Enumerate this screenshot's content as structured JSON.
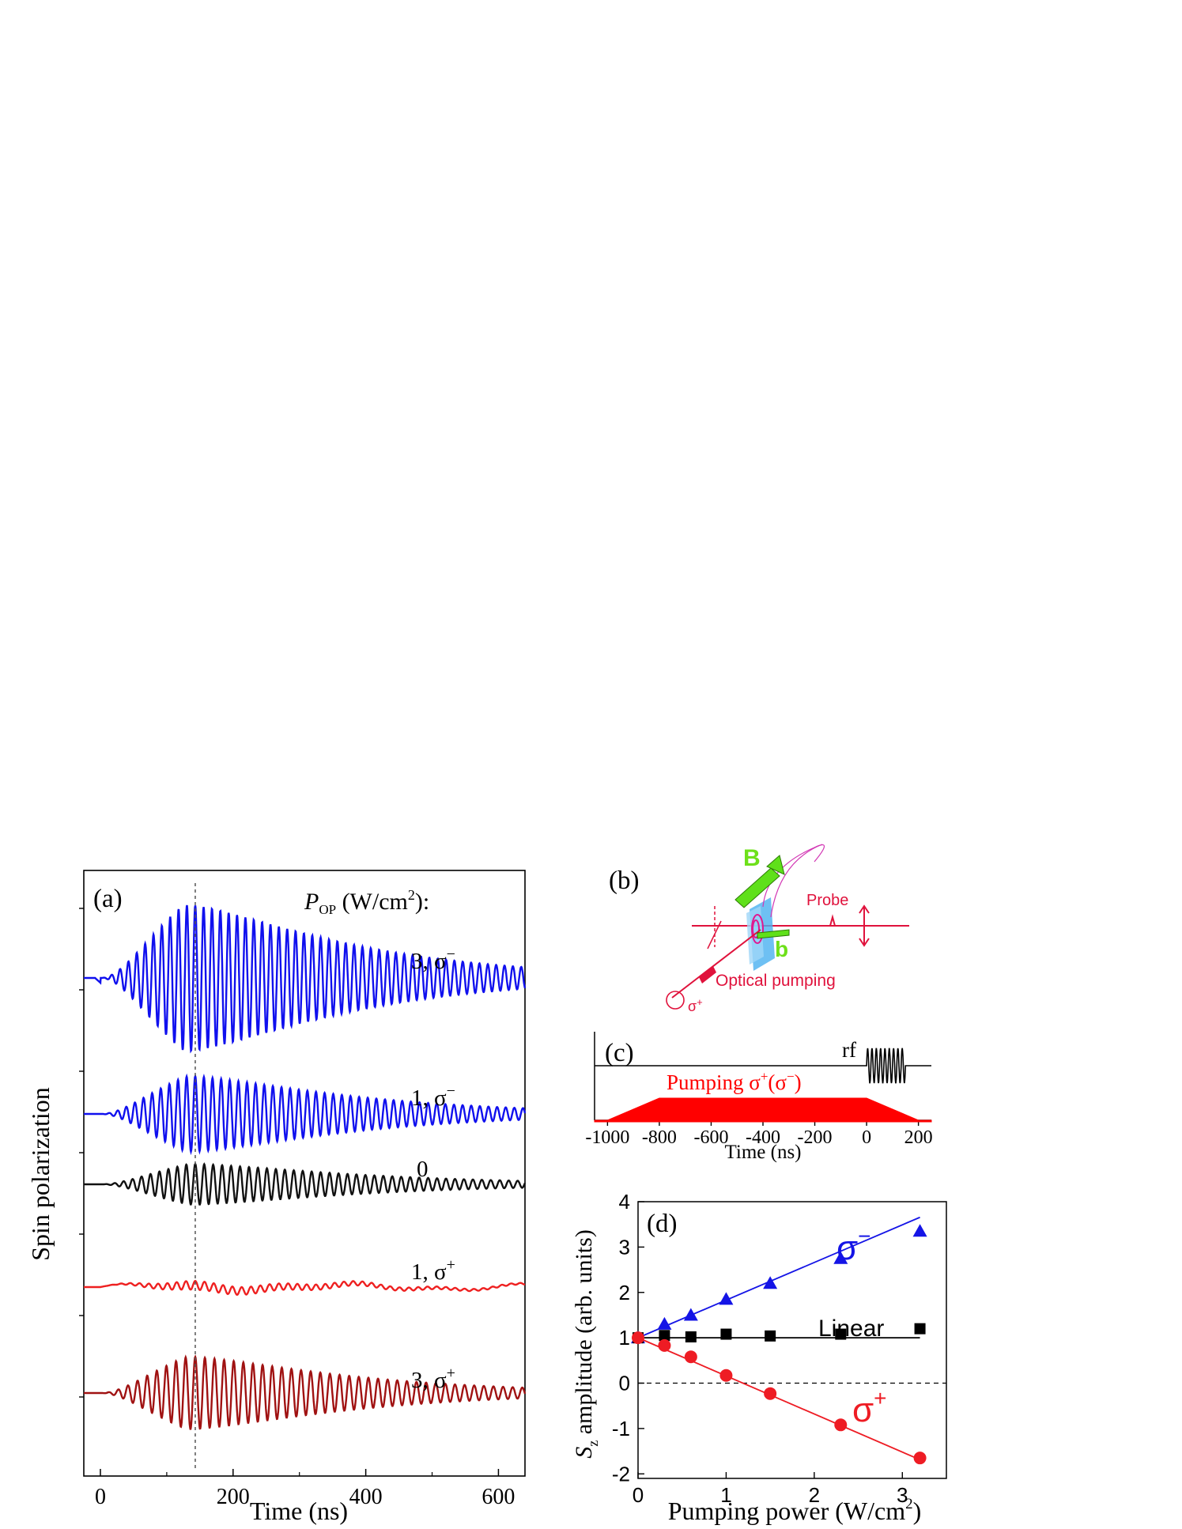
{
  "chart_data": [
    {
      "panel": "(a)",
      "type": "line",
      "xlabel": "Time (ns)",
      "ylabel": "Spin polarization",
      "xlim": [
        -25,
        640
      ],
      "xticks": [
        0,
        200,
        400,
        600
      ],
      "xtick_labels": [
        "0",
        "200",
        "400",
        "600"
      ],
      "legend_title_symbol": "P",
      "legend_title_sub": "OP",
      "legend_title_rest": " (W/cm",
      "legend_title_sup": "2",
      "legend_title_end": "):",
      "marker_time_ns": 143,
      "series": [
        {
          "name": "3, σ−",
          "label_main": "3, σ",
          "label_sup": "−",
          "color": "#1010ee",
          "amplitude": 1.0,
          "envelope_peak_ns": 135,
          "decay_ns": 300,
          "period_ns": 12.6,
          "rising_ns": 10
        },
        {
          "name": "1, σ−",
          "label_main": "1, σ",
          "label_sup": "−",
          "color": "#1010ee",
          "amplitude": 0.52,
          "envelope_peak_ns": 140,
          "decay_ns": 290,
          "period_ns": 13.0,
          "rising_ns": 10
        },
        {
          "name": "0",
          "label_main": "0",
          "label_sup": "",
          "color": "#111111",
          "amplitude": 0.28,
          "envelope_peak_ns": 145,
          "decay_ns": 300,
          "period_ns": 13.5,
          "rising_ns": 10
        },
        {
          "name": "1, σ+",
          "label_main": "1, σ",
          "label_sup": "+",
          "color": "#ee2020",
          "amplitude": 0.06,
          "envelope_peak_ns": 145,
          "decay_ns": 320,
          "period_ns": 14.0,
          "rising_ns": 10
        },
        {
          "name": "3, σ+",
          "label_main": "3, σ",
          "label_sup": "+",
          "color": "#a01212",
          "amplitude": 0.5,
          "envelope_peak_ns": 140,
          "decay_ns": 280,
          "period_ns": 14.5,
          "rising_ns": 10
        }
      ]
    },
    {
      "panel": "(b)",
      "type": "diagram",
      "labels": {
        "B": "B",
        "b": "b",
        "probe": "Probe",
        "pumping": "Optical pumping",
        "sigma": "σ",
        "sigma_sup": "+"
      }
    },
    {
      "panel": "(c)",
      "type": "area",
      "xlabel": "Time (ns)",
      "xlim": [
        -1050,
        250
      ],
      "xticks": [
        -1000,
        -800,
        -600,
        -400,
        -200,
        0,
        200
      ],
      "xtick_labels": [
        "-1000",
        "-800",
        "-600",
        "-400",
        "-200",
        "0",
        "200"
      ],
      "rf_label": "rf",
      "pumping_label_a": "Pumping σ",
      "pumping_label_sup1": "+",
      "pumping_label_b": "(σ",
      "pumping_label_sup2": "−",
      "pumping_label_c": ")",
      "pumping_profile": {
        "start": -1000,
        "ramp_end": -800,
        "ramp_down_start": 0,
        "end": 200
      },
      "rf_window": {
        "start": 0,
        "end": 150,
        "cycles": 9
      }
    },
    {
      "panel": "(d)",
      "type": "scatter",
      "xlabel_main": "Pumping power (W/cm",
      "xlabel_sup": "2",
      "xlabel_end": ")",
      "ylabel_symbol": "S",
      "ylabel_sub": "z",
      "ylabel_rest": " amplitude (arb. units)",
      "xlim": [
        0,
        3.5
      ],
      "ylim": [
        -2.1,
        4.0
      ],
      "xticks": [
        0,
        1,
        2,
        3
      ],
      "yticks": [
        -2,
        -1,
        0,
        1,
        2,
        3,
        4
      ],
      "reference_line_y": 0,
      "series": [
        {
          "name": "σ−",
          "label_main": "σ",
          "label_sup": "−",
          "marker": "triangle",
          "color": "#1414e6",
          "x": [
            0,
            0.3,
            0.6,
            1.0,
            1.5,
            2.3,
            3.2
          ],
          "y": [
            1.0,
            1.3,
            1.5,
            1.85,
            2.2,
            2.75,
            3.35
          ],
          "fit": {
            "slope": 0.83,
            "intercept": 1.0
          }
        },
        {
          "name": "Linear",
          "label_main": "Linear",
          "label_sup": "",
          "marker": "square",
          "color": "#000000",
          "x": [
            0,
            0.3,
            0.6,
            1.0,
            1.5,
            2.3,
            3.2
          ],
          "y": [
            1.0,
            1.05,
            1.02,
            1.08,
            1.04,
            1.08,
            1.2
          ],
          "fit": {
            "slope": 0.0,
            "intercept": 1.0
          }
        },
        {
          "name": "σ+",
          "label_main": "σ",
          "label_sup": "+",
          "marker": "circle",
          "color": "#ee1c24",
          "x": [
            0,
            0.3,
            0.6,
            1.0,
            1.5,
            2.3,
            3.2
          ],
          "y": [
            1.0,
            0.83,
            0.58,
            0.17,
            -0.23,
            -0.92,
            -1.65
          ],
          "fit": {
            "slope": -0.84,
            "intercept": 1.0
          }
        }
      ]
    }
  ]
}
